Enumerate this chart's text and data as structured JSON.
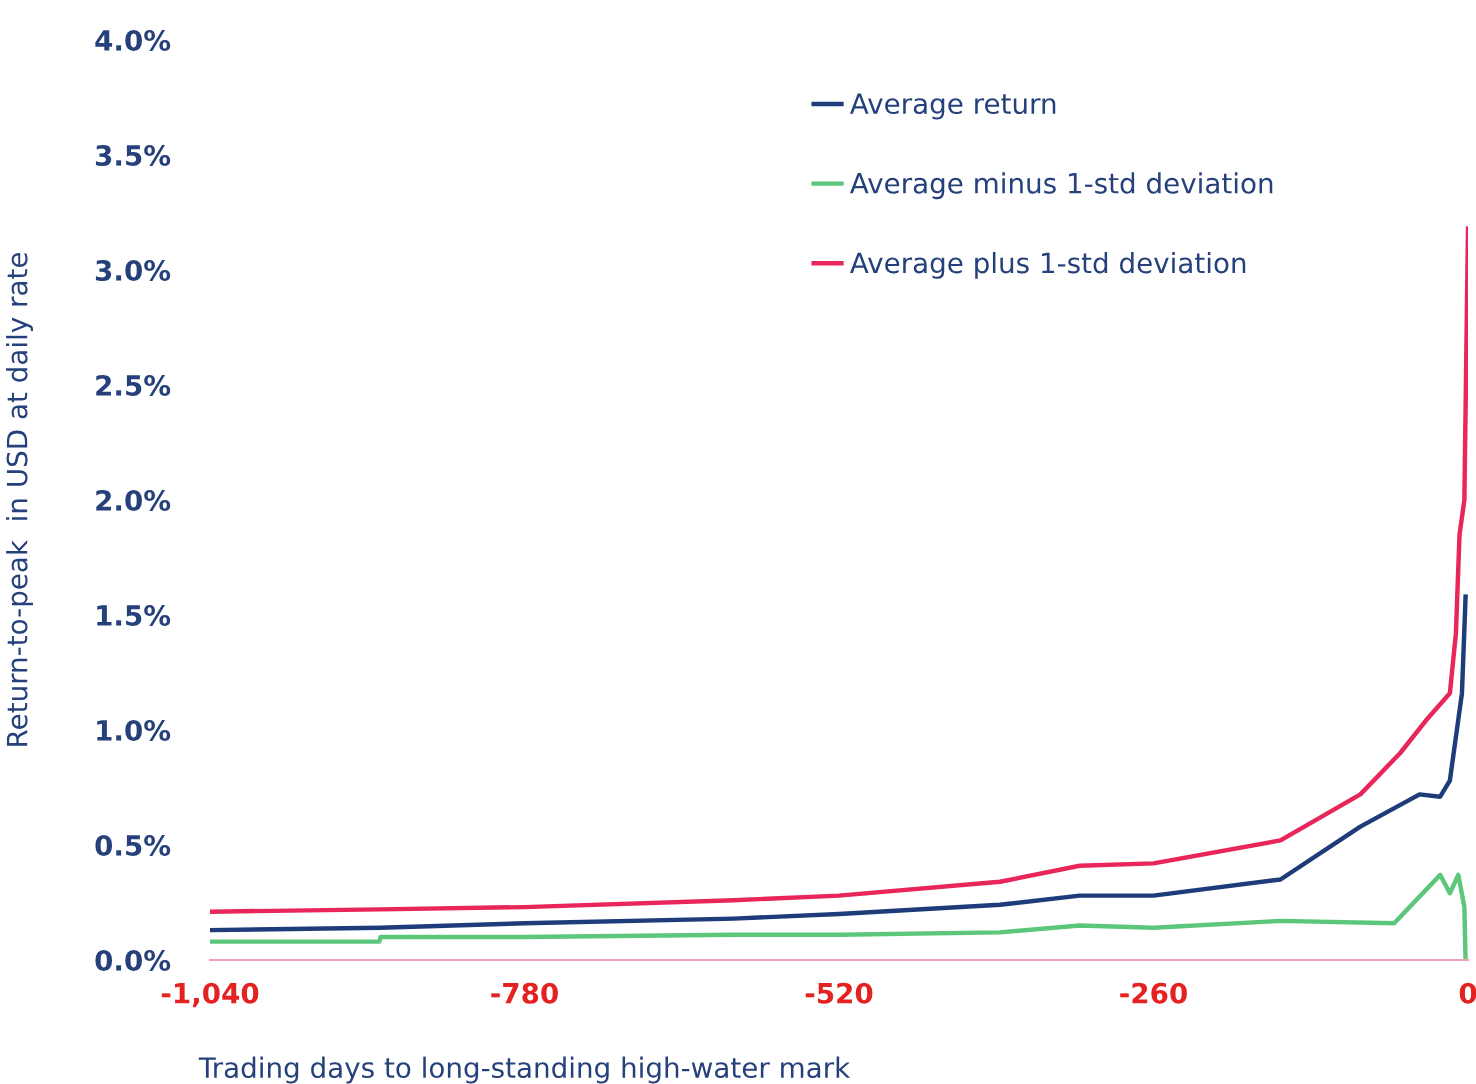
{
  "chart_data": {
    "type": "line",
    "ylabel": "Return-to-peak  in USD at daily rate",
    "xlabel": "Trading days to long-standing high-water mark",
    "xlim": [
      -1040,
      0
    ],
    "xticks": [
      {
        "value": -1040,
        "label": "-1,040"
      },
      -780,
      -520,
      -260,
      0
    ],
    "ylim": [
      0,
      4
    ],
    "yticks": [
      {
        "value": 0,
        "label": "0.0%"
      },
      {
        "value": 0.5,
        "label": "0.5%"
      },
      {
        "value": 1,
        "label": "1.0%"
      },
      {
        "value": 1.5,
        "label": "1.5%"
      },
      {
        "value": 2,
        "label": "2.0%"
      },
      {
        "value": 2.5,
        "label": "2.5%"
      },
      {
        "value": 3,
        "label": "3.0%"
      },
      {
        "value": 3.5,
        "label": "3.5%"
      },
      {
        "value": 4,
        "label": "4.0%"
      }
    ],
    "grid": false,
    "legend": "top",
    "marker": "none",
    "line_style": "solid",
    "series": [
      {
        "name": "Average return",
        "color": "#1f3c7a",
        "x": [
          -1040,
          -899,
          -780,
          -607,
          -520,
          -387,
          -321,
          -260,
          -155,
          -89,
          -40,
          -23,
          -15,
          -5,
          -2
        ],
        "values": [
          0.13,
          0.14,
          0.16,
          0.18,
          0.2,
          0.24,
          0.28,
          0.28,
          0.35,
          0.58,
          0.72,
          0.71,
          0.78,
          1.16,
          1.58
        ]
      },
      {
        "name": "Average minus 1-std deviation",
        "color": "#5cc77a",
        "x": [
          -1040,
          -900,
          -899,
          -780,
          -607,
          -520,
          -387,
          -321,
          -260,
          -155,
          -61,
          -23,
          -15,
          -8,
          -3,
          -2
        ],
        "values": [
          0.08,
          0.08,
          0.1,
          0.1,
          0.11,
          0.11,
          0.12,
          0.15,
          0.14,
          0.17,
          0.16,
          0.37,
          0.29,
          0.37,
          0.23,
          0.0
        ]
      },
      {
        "name": "Average plus 1-std deviation",
        "color": "#e8265a",
        "x": [
          -1040,
          -899,
          -780,
          -607,
          -520,
          -387,
          -321,
          -260,
          -155,
          -89,
          -56,
          -35,
          -15,
          -10,
          -7,
          -3,
          0
        ],
        "values": [
          0.21,
          0.22,
          0.23,
          0.26,
          0.28,
          0.34,
          0.41,
          0.42,
          0.52,
          0.72,
          0.9,
          1.04,
          1.16,
          1.42,
          1.85,
          2.0,
          3.18
        ]
      }
    ]
  }
}
